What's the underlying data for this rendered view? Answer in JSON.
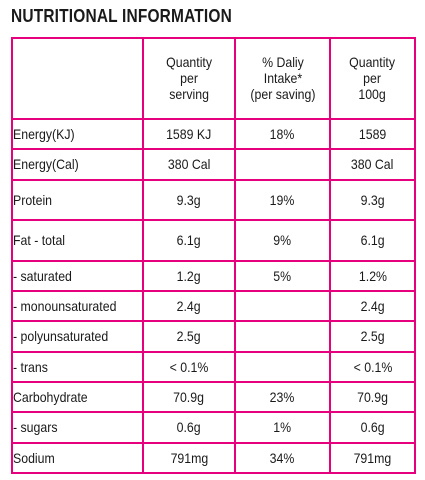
{
  "title": "NUTRITIONAL INFORMATION",
  "colors": {
    "border": "#e6007e",
    "text": "#1a1a1a"
  },
  "headers": {
    "blank": "",
    "per_serving": [
      "Quantity",
      "per",
      "serving"
    ],
    "daily_intake": [
      "% Daliy",
      "Intake*",
      "(per saving)"
    ],
    "per_100g": [
      "Quantity",
      "per",
      "100g"
    ]
  },
  "rows": [
    {
      "nutrient": "Energy(KJ)",
      "per_serving": "1589 KJ",
      "daily_intake": "18%",
      "per_100g": "1589"
    },
    {
      "nutrient": "Energy(Cal)",
      "per_serving": "380 Cal",
      "daily_intake": "",
      "per_100g": "380 Cal"
    },
    {
      "nutrient": "Protein",
      "per_serving": "9.3g",
      "daily_intake": "19%",
      "per_100g": "9.3g"
    },
    {
      "nutrient": "Fat - total",
      "per_serving": "6.1g",
      "daily_intake": "9%",
      "per_100g": "6.1g"
    },
    {
      "nutrient": "- saturated",
      "per_serving": "1.2g",
      "daily_intake": "5%",
      "per_100g": "1.2%"
    },
    {
      "nutrient": "- monounsaturated",
      "per_serving": "2.4g",
      "daily_intake": "",
      "per_100g": "2.4g"
    },
    {
      "nutrient": "- polyunsaturated",
      "per_serving": "2.5g",
      "daily_intake": "",
      "per_100g": "2.5g"
    },
    {
      "nutrient": "- trans",
      "per_serving": "< 0.1%",
      "daily_intake": "",
      "per_100g": "< 0.1%"
    },
    {
      "nutrient": "Carbohydrate",
      "per_serving": "70.9g",
      "daily_intake": "23%",
      "per_100g": "70.9g"
    },
    {
      "nutrient": "- sugars",
      "per_serving": "0.6g",
      "daily_intake": "1%",
      "per_100g": "0.6g"
    },
    {
      "nutrient": "Sodium",
      "per_serving": "791mg",
      "daily_intake": "34%",
      "per_100g": "791mg"
    }
  ]
}
